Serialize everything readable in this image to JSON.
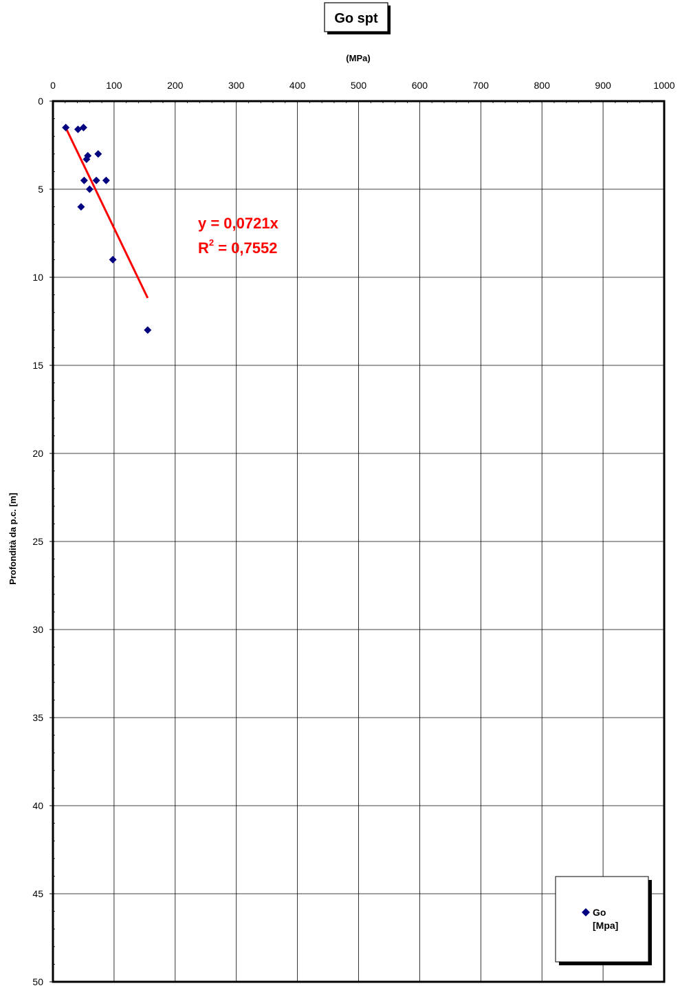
{
  "chart_data": {
    "type": "scatter",
    "title": "Go spt",
    "xlabel": "(MPa)",
    "ylabel": "Profondità da p.c. [m]",
    "xlim": [
      0,
      1000
    ],
    "ylim": [
      0,
      50
    ],
    "y_inverted": true,
    "x_axis_position": "top",
    "grid": true,
    "x_ticks": [
      "0",
      "100",
      "200",
      "300",
      "400",
      "500",
      "600",
      "700",
      "800",
      "900",
      "1000"
    ],
    "y_ticks": [
      "0",
      "5",
      "10",
      "15",
      "20",
      "25",
      "30",
      "35",
      "40",
      "45",
      "50"
    ],
    "series": [
      {
        "name": "Go [Mpa]",
        "legend_lines": [
          "Go",
          "[Mpa]"
        ],
        "marker": "diamond",
        "color": "#000080",
        "points": [
          {
            "x": 21,
            "y": 1.5
          },
          {
            "x": 41,
            "y": 1.6
          },
          {
            "x": 50,
            "y": 1.5
          },
          {
            "x": 57,
            "y": 3.1
          },
          {
            "x": 55,
            "y": 3.3
          },
          {
            "x": 74,
            "y": 3.0
          },
          {
            "x": 51,
            "y": 4.5
          },
          {
            "x": 71,
            "y": 4.5
          },
          {
            "x": 87,
            "y": 4.5
          },
          {
            "x": 60,
            "y": 5.0
          },
          {
            "x": 46,
            "y": 6.0
          },
          {
            "x": 98,
            "y": 9.0
          },
          {
            "x": 155,
            "y": 13.0
          }
        ]
      }
    ],
    "trendline": {
      "type": "linear",
      "color": "#ff0000",
      "equation": "y = 0,0721x",
      "r2_prefix": "R",
      "r2_exp": "2",
      "r2_value": " = 0,7552",
      "x_range": [
        21,
        155
      ]
    },
    "legend_position": "bottom-right"
  }
}
